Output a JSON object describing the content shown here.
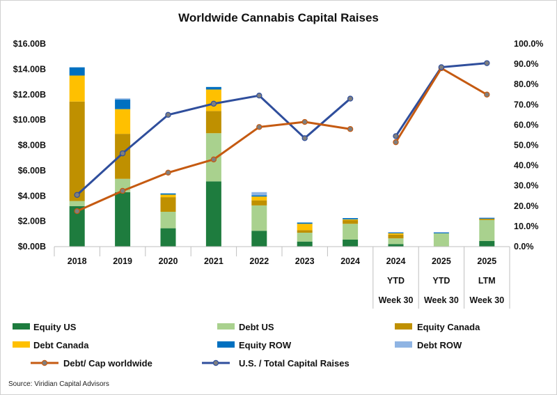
{
  "chart_data": {
    "type": "bar",
    "title": "Worldwide Cannabis Capital Raises",
    "source": "Source: Viridian Capital Advisors",
    "categories": [
      [
        "2018"
      ],
      [
        "2019"
      ],
      [
        "2020"
      ],
      [
        "2021"
      ],
      [
        "2022"
      ],
      [
        "2023"
      ],
      [
        "2024"
      ],
      [
        "2024",
        "YTD",
        "Week 30"
      ],
      [
        "2025",
        "YTD",
        "Week 30"
      ],
      [
        "2025",
        "LTM",
        "Week 30"
      ]
    ],
    "y_left": {
      "min": 0,
      "max": 16,
      "step": 2,
      "tick_labels": [
        "$0.00B",
        "$2.00B",
        "$4.00B",
        "$6.00B",
        "$8.00B",
        "$10.00B",
        "$12.00B",
        "$14.00B",
        "$16.00B"
      ]
    },
    "y_right": {
      "min": 0,
      "max": 100,
      "step": 10,
      "tick_labels": [
        "0.0%",
        "10.0%",
        "20.0%",
        "30.0%",
        "40.0%",
        "50.0%",
        "60.0%",
        "70.0%",
        "80.0%",
        "90.0%",
        "100.0%"
      ]
    },
    "grid": false,
    "legend_position": "bottom",
    "bar_series": [
      {
        "name": "Equity US",
        "color": "#1e7c3e",
        "values": [
          3.2,
          4.3,
          1.45,
          5.15,
          1.25,
          0.4,
          0.55,
          0.2,
          0.0,
          0.45
        ]
      },
      {
        "name": "Debt US",
        "color": "#a9d18e",
        "values": [
          0.4,
          1.05,
          1.3,
          3.8,
          2.0,
          0.7,
          1.25,
          0.45,
          1.05,
          1.65
        ]
      },
      {
        "name": "Equity Canada",
        "color": "#bf9000",
        "values": [
          7.85,
          3.55,
          1.15,
          1.75,
          0.4,
          0.2,
          0.3,
          0.3,
          0.0,
          0.1
        ]
      },
      {
        "name": "Debt Canada",
        "color": "#ffc000",
        "values": [
          2.05,
          1.95,
          0.2,
          1.7,
          0.3,
          0.5,
          0.05,
          0.1,
          0.0,
          0.0
        ]
      },
      {
        "name": "Equity ROW",
        "color": "#0070c0",
        "values": [
          0.65,
          0.75,
          0.1,
          0.2,
          0.1,
          0.1,
          0.1,
          0.05,
          0.05,
          0.05
        ]
      },
      {
        "name": "Debt ROW",
        "color": "#8fb4e3",
        "values": [
          0.0,
          0.1,
          0.0,
          0.0,
          0.25,
          0.0,
          0.0,
          0.05,
          0.05,
          0.05
        ]
      }
    ],
    "line_series": [
      {
        "name": "Debt/ Cap worldwide",
        "color": "#c55a11",
        "values": [
          17.5,
          27.5,
          36.5,
          43.0,
          59.0,
          61.5,
          58.0,
          51.5,
          88.0,
          75.0
        ]
      },
      {
        "name": "U.S. / Total Capital Raises",
        "color": "#2f4e9c",
        "values": [
          25.5,
          46.0,
          65.0,
          70.5,
          74.5,
          53.5,
          73.0,
          54.5,
          88.5,
          90.5
        ]
      }
    ],
    "line_segments": [
      [
        0,
        6
      ],
      [
        7,
        9
      ]
    ]
  }
}
